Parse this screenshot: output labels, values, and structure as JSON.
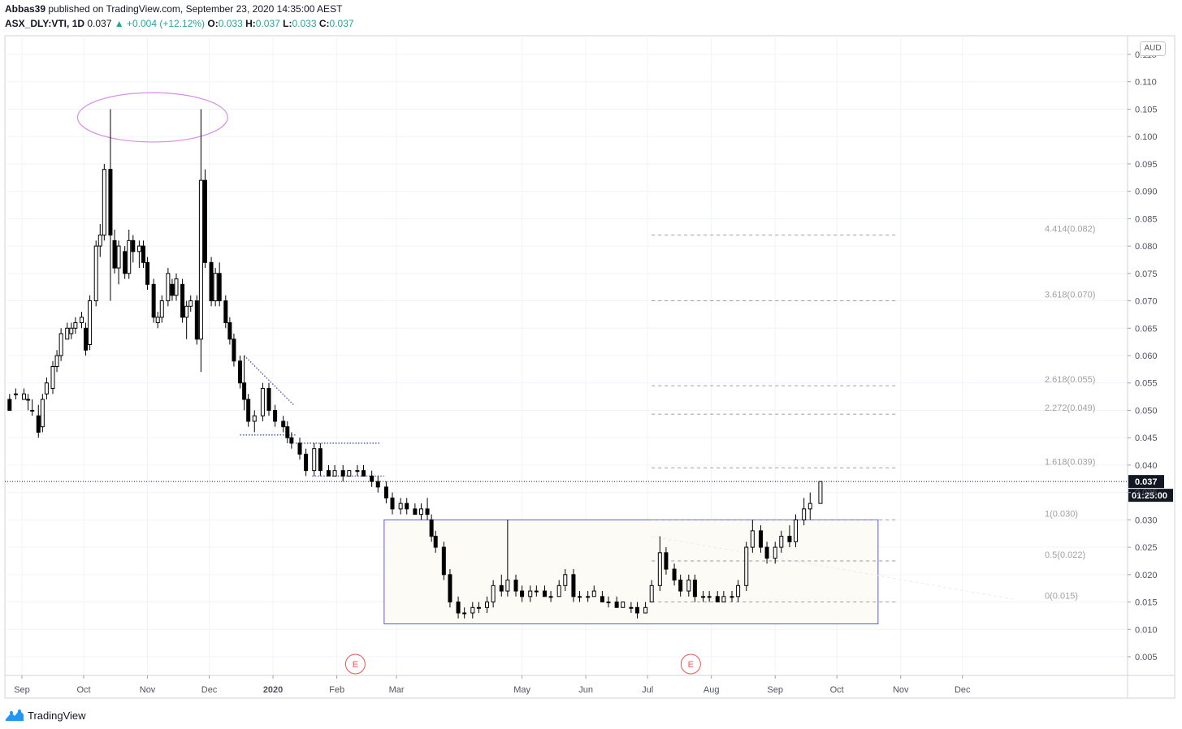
{
  "header": {
    "author": "Abbas39",
    "published_text": "published on TradingView.com, September 23, 2020 14:35:00 AEST",
    "symbol": "ASX_DLY:VTI, 1D",
    "last": "0.037",
    "change": "+0.004 (+12.12%)",
    "open_label": "O:",
    "open": "0.033",
    "high_label": "H:",
    "high": "0.037",
    "low_label": "L:",
    "low": "0.033",
    "close_label": "C:",
    "close": "0.037"
  },
  "currency": "AUD",
  "price_label": "0.037",
  "countdown_label": "01:25:00",
  "footer": {
    "brand": "TradingView"
  },
  "colors": {
    "accent_up": "#26a69a",
    "fib_line": "#9e9e9e",
    "box_border": "#5b5bd6",
    "ellipse": "#d68ee8"
  },
  "chart_data": {
    "type": "candlestick",
    "y_axis": {
      "min": 0.002,
      "max": 0.118,
      "ticks": [
        "0.115",
        "0.110",
        "0.105",
        "0.100",
        "0.095",
        "0.090",
        "0.085",
        "0.080",
        "0.075",
        "0.070",
        "0.065",
        "0.060",
        "0.055",
        "0.050",
        "0.045",
        "0.040",
        "0.035",
        "0.030",
        "0.025",
        "0.020",
        "0.015",
        "0.010",
        "0.005"
      ]
    },
    "x_axis": {
      "ticks": [
        {
          "label": "Sep",
          "date": "2019-09-01",
          "bold": false
        },
        {
          "label": "Oct",
          "date": "2019-10-01",
          "bold": false
        },
        {
          "label": "Nov",
          "date": "2019-11-01",
          "bold": false
        },
        {
          "label": "Dec",
          "date": "2019-12-01",
          "bold": false
        },
        {
          "label": "2020",
          "date": "2020-01-01",
          "bold": true
        },
        {
          "label": "Feb",
          "date": "2020-02-01",
          "bold": false
        },
        {
          "label": "Mar",
          "date": "2020-03-01",
          "bold": false
        },
        {
          "label": "May",
          "date": "2020-05-01",
          "bold": false
        },
        {
          "label": "Jun",
          "date": "2020-06-01",
          "bold": false
        },
        {
          "label": "Jul",
          "date": "2020-07-01",
          "bold": false
        },
        {
          "label": "Aug",
          "date": "2020-08-01",
          "bold": false
        },
        {
          "label": "Sep",
          "date": "2020-09-01",
          "bold": false
        },
        {
          "label": "Oct",
          "date": "2020-10-01",
          "bold": false
        },
        {
          "label": "Nov",
          "date": "2020-11-01",
          "bold": false
        },
        {
          "label": "Dec",
          "date": "2020-12-01",
          "bold": false
        }
      ]
    },
    "grid": true,
    "fib_levels": [
      {
        "label": "4.414(0.082)",
        "value": 0.082
      },
      {
        "label": "3.618(0.070)",
        "value": 0.07
      },
      {
        "label": "2.618(0.055)",
        "value": 0.0545
      },
      {
        "label": "2.272(0.049)",
        "value": 0.0493
      },
      {
        "label": "1.618(0.039)",
        "value": 0.0395
      },
      {
        "label": "1(0.030)",
        "value": 0.03
      },
      {
        "label": "0.5(0.022)",
        "value": 0.0225
      },
      {
        "label": "0(0.015)",
        "value": 0.015
      }
    ],
    "fib_start_date": "2020-07-03",
    "fib_end_date": "2020-10-31",
    "box": {
      "start_date": "2020-02-24",
      "end_date": "2020-10-21",
      "low": 0.011,
      "high": 0.03
    },
    "ellipse": {
      "start_date": "2019-09-28",
      "end_date": "2019-12-10",
      "center": 0.1035,
      "low": 0.1005,
      "high": 0.1095
    },
    "trend_lines": [
      {
        "style": "dotted",
        "d1": "2019-12-18",
        "v1": 0.06,
        "d2": "2020-01-11",
        "v2": 0.051
      },
      {
        "style": "dotted",
        "d1": "2019-12-16",
        "v1": 0.0455,
        "d2": "2020-01-12",
        "v2": 0.0455
      },
      {
        "style": "dotted",
        "d1": "2020-01-12",
        "v1": 0.044,
        "d2": "2020-02-22",
        "v2": 0.044
      },
      {
        "style": "dotted",
        "d1": "2020-01-20",
        "v1": 0.038,
        "d2": "2020-02-24",
        "v2": 0.038
      }
    ],
    "current_price": 0.037,
    "earnings_markers": [
      {
        "label": "E",
        "date": "2020-02-10"
      },
      {
        "label": "E",
        "date": "2020-07-22"
      }
    ],
    "candles": [
      [
        "2019-08-26",
        0.052,
        0.053,
        0.05,
        0.05
      ],
      [
        "2019-08-29",
        0.053,
        0.054,
        0.052,
        0.053
      ],
      [
        "2019-09-02",
        0.052,
        0.054,
        0.052,
        0.053
      ],
      [
        "2019-09-04",
        0.052,
        0.053,
        0.05,
        0.052
      ],
      [
        "2019-09-06",
        0.05,
        0.052,
        0.049,
        0.05
      ],
      [
        "2019-09-09",
        0.049,
        0.051,
        0.045,
        0.046
      ],
      [
        "2019-09-11",
        0.047,
        0.053,
        0.046,
        0.052
      ],
      [
        "2019-09-13",
        0.053,
        0.056,
        0.052,
        0.055
      ],
      [
        "2019-09-16",
        0.054,
        0.059,
        0.053,
        0.058
      ],
      [
        "2019-09-18",
        0.058,
        0.061,
        0.057,
        0.06
      ],
      [
        "2019-09-20",
        0.06,
        0.065,
        0.059,
        0.064
      ],
      [
        "2019-09-23",
        0.063,
        0.066,
        0.063,
        0.065
      ],
      [
        "2019-09-25",
        0.064,
        0.066,
        0.063,
        0.065
      ],
      [
        "2019-09-27",
        0.065,
        0.067,
        0.064,
        0.066
      ],
      [
        "2019-09-30",
        0.066,
        0.068,
        0.065,
        0.067
      ],
      [
        "2019-10-02",
        0.065,
        0.066,
        0.06,
        0.061
      ],
      [
        "2019-10-04",
        0.062,
        0.071,
        0.061,
        0.07
      ],
      [
        "2019-10-07",
        0.07,
        0.081,
        0.069,
        0.08
      ],
      [
        "2019-10-09",
        0.08,
        0.084,
        0.078,
        0.082
      ],
      [
        "2019-10-11",
        0.082,
        0.095,
        0.081,
        0.094
      ],
      [
        "2019-10-14",
        0.094,
        0.105,
        0.07,
        0.082
      ],
      [
        "2019-10-16",
        0.081,
        0.083,
        0.075,
        0.076
      ],
      [
        "2019-10-18",
        0.076,
        0.081,
        0.073,
        0.08
      ],
      [
        "2019-10-21",
        0.079,
        0.08,
        0.074,
        0.075
      ],
      [
        "2019-10-23",
        0.075,
        0.083,
        0.074,
        0.081
      ],
      [
        "2019-10-25",
        0.081,
        0.082,
        0.077,
        0.079
      ],
      [
        "2019-10-28",
        0.079,
        0.081,
        0.076,
        0.08
      ],
      [
        "2019-10-30",
        0.08,
        0.081,
        0.076,
        0.077
      ],
      [
        "2019-11-01",
        0.077,
        0.078,
        0.072,
        0.073
      ],
      [
        "2019-11-04",
        0.073,
        0.074,
        0.066,
        0.067
      ],
      [
        "2019-11-06",
        0.066,
        0.068,
        0.065,
        0.067
      ],
      [
        "2019-11-08",
        0.067,
        0.071,
        0.066,
        0.07
      ],
      [
        "2019-11-11",
        0.07,
        0.076,
        0.069,
        0.075
      ],
      [
        "2019-11-13",
        0.073,
        0.074,
        0.07,
        0.071
      ],
      [
        "2019-11-15",
        0.071,
        0.075,
        0.07,
        0.074
      ],
      [
        "2019-11-18",
        0.073,
        0.074,
        0.066,
        0.067
      ],
      [
        "2019-11-20",
        0.067,
        0.07,
        0.063,
        0.069
      ],
      [
        "2019-11-22",
        0.069,
        0.071,
        0.068,
        0.07
      ],
      [
        "2019-11-25",
        0.07,
        0.071,
        0.062,
        0.063
      ],
      [
        "2019-11-27",
        0.063,
        0.105,
        0.057,
        0.092
      ],
      [
        "2019-11-29",
        0.092,
        0.094,
        0.076,
        0.077
      ],
      [
        "2019-12-02",
        0.077,
        0.078,
        0.069,
        0.07
      ],
      [
        "2019-12-04",
        0.07,
        0.076,
        0.069,
        0.075
      ],
      [
        "2019-12-06",
        0.075,
        0.077,
        0.069,
        0.07
      ],
      [
        "2019-12-09",
        0.07,
        0.071,
        0.065,
        0.066
      ],
      [
        "2019-12-11",
        0.066,
        0.067,
        0.062,
        0.063
      ],
      [
        "2019-12-13",
        0.063,
        0.064,
        0.058,
        0.059
      ],
      [
        "2019-12-16",
        0.059,
        0.06,
        0.054,
        0.055
      ],
      [
        "2019-12-18",
        0.055,
        0.06,
        0.05,
        0.052
      ],
      [
        "2019-12-20",
        0.052,
        0.053,
        0.047,
        0.048
      ],
      [
        "2019-12-23",
        0.048,
        0.05,
        0.046,
        0.049
      ],
      [
        "2019-12-27",
        0.049,
        0.055,
        0.048,
        0.054
      ],
      [
        "2019-12-30",
        0.054,
        0.055,
        0.049,
        0.05
      ],
      [
        "2020-01-02",
        0.05,
        0.051,
        0.047,
        0.048
      ],
      [
        "2020-01-06",
        0.048,
        0.049,
        0.046,
        0.047
      ],
      [
        "2020-01-08",
        0.047,
        0.048,
        0.044,
        0.045
      ],
      [
        "2020-01-10",
        0.045,
        0.046,
        0.043,
        0.044
      ],
      [
        "2020-01-14",
        0.044,
        0.045,
        0.041,
        0.042
      ],
      [
        "2020-01-17",
        0.042,
        0.043,
        0.038,
        0.039
      ],
      [
        "2020-01-21",
        0.039,
        0.044,
        0.038,
        0.043
      ],
      [
        "2020-01-24",
        0.043,
        0.044,
        0.038,
        0.039
      ],
      [
        "2020-01-28",
        0.039,
        0.04,
        0.038,
        0.038
      ],
      [
        "2020-01-31",
        0.038,
        0.04,
        0.038,
        0.039
      ],
      [
        "2020-02-04",
        0.039,
        0.04,
        0.037,
        0.038
      ],
      [
        "2020-02-07",
        0.038,
        0.039,
        0.038,
        0.039
      ],
      [
        "2020-02-11",
        0.039,
        0.04,
        0.038,
        0.039
      ],
      [
        "2020-02-14",
        0.039,
        0.04,
        0.038,
        0.038
      ],
      [
        "2020-02-18",
        0.038,
        0.039,
        0.036,
        0.037
      ],
      [
        "2020-02-21",
        0.037,
        0.038,
        0.035,
        0.036
      ],
      [
        "2020-02-25",
        0.036,
        0.037,
        0.033,
        0.034
      ],
      [
        "2020-02-28",
        0.034,
        0.035,
        0.031,
        0.032
      ],
      [
        "2020-03-03",
        0.032,
        0.034,
        0.031,
        0.033
      ],
      [
        "2020-03-06",
        0.033,
        0.034,
        0.031,
        0.032
      ],
      [
        "2020-03-10",
        0.032,
        0.033,
        0.031,
        0.031
      ],
      [
        "2020-03-13",
        0.031,
        0.033,
        0.03,
        0.032
      ],
      [
        "2020-03-16",
        0.032,
        0.034,
        0.03,
        0.031
      ],
      [
        "2020-03-18",
        0.03,
        0.031,
        0.026,
        0.027
      ],
      [
        "2020-03-20",
        0.027,
        0.028,
        0.024,
        0.025
      ],
      [
        "2020-03-24",
        0.025,
        0.026,
        0.019,
        0.02
      ],
      [
        "2020-03-27",
        0.02,
        0.021,
        0.014,
        0.015
      ],
      [
        "2020-03-31",
        0.015,
        0.016,
        0.012,
        0.013
      ],
      [
        "2020-04-03",
        0.013,
        0.014,
        0.012,
        0.013
      ],
      [
        "2020-04-07",
        0.013,
        0.015,
        0.012,
        0.014
      ],
      [
        "2020-04-10",
        0.014,
        0.015,
        0.013,
        0.014
      ],
      [
        "2020-04-14",
        0.014,
        0.016,
        0.013,
        0.015
      ],
      [
        "2020-04-17",
        0.015,
        0.019,
        0.014,
        0.018
      ],
      [
        "2020-04-21",
        0.018,
        0.02,
        0.016,
        0.017
      ],
      [
        "2020-04-24",
        0.017,
        0.03,
        0.016,
        0.019
      ],
      [
        "2020-04-28",
        0.019,
        0.02,
        0.016,
        0.017
      ],
      [
        "2020-05-01",
        0.017,
        0.018,
        0.015,
        0.016
      ],
      [
        "2020-05-05",
        0.016,
        0.018,
        0.015,
        0.017
      ],
      [
        "2020-05-08",
        0.017,
        0.018,
        0.016,
        0.017
      ],
      [
        "2020-05-12",
        0.017,
        0.018,
        0.016,
        0.016
      ],
      [
        "2020-05-15",
        0.016,
        0.017,
        0.015,
        0.016
      ],
      [
        "2020-05-19",
        0.016,
        0.019,
        0.016,
        0.018
      ],
      [
        "2020-05-22",
        0.018,
        0.021,
        0.017,
        0.02
      ],
      [
        "2020-05-26",
        0.02,
        0.021,
        0.015,
        0.016
      ],
      [
        "2020-05-29",
        0.016,
        0.017,
        0.015,
        0.016
      ],
      [
        "2020-06-02",
        0.016,
        0.017,
        0.015,
        0.016
      ],
      [
        "2020-06-05",
        0.016,
        0.018,
        0.016,
        0.017
      ],
      [
        "2020-06-09",
        0.016,
        0.017,
        0.015,
        0.015
      ],
      [
        "2020-06-12",
        0.015,
        0.016,
        0.014,
        0.015
      ],
      [
        "2020-06-16",
        0.015,
        0.016,
        0.014,
        0.014
      ],
      [
        "2020-06-19",
        0.014,
        0.015,
        0.014,
        0.015
      ],
      [
        "2020-06-23",
        0.014,
        0.015,
        0.013,
        0.014
      ],
      [
        "2020-06-26",
        0.014,
        0.015,
        0.012,
        0.013
      ],
      [
        "2020-06-30",
        0.013,
        0.015,
        0.013,
        0.014
      ],
      [
        "2020-07-03",
        0.015,
        0.019,
        0.015,
        0.018
      ],
      [
        "2020-07-07",
        0.018,
        0.027,
        0.017,
        0.024
      ],
      [
        "2020-07-10",
        0.024,
        0.025,
        0.02,
        0.021
      ],
      [
        "2020-07-14",
        0.021,
        0.022,
        0.018,
        0.019
      ],
      [
        "2020-07-17",
        0.019,
        0.02,
        0.016,
        0.017
      ],
      [
        "2020-07-21",
        0.017,
        0.02,
        0.016,
        0.019
      ],
      [
        "2020-07-24",
        0.019,
        0.02,
        0.015,
        0.016
      ],
      [
        "2020-07-28",
        0.016,
        0.017,
        0.015,
        0.016
      ],
      [
        "2020-07-31",
        0.016,
        0.017,
        0.015,
        0.016
      ],
      [
        "2020-08-04",
        0.016,
        0.017,
        0.015,
        0.015
      ],
      [
        "2020-08-07",
        0.015,
        0.017,
        0.015,
        0.016
      ],
      [
        "2020-08-11",
        0.016,
        0.017,
        0.015,
        0.016
      ],
      [
        "2020-08-14",
        0.016,
        0.019,
        0.015,
        0.018
      ],
      [
        "2020-08-18",
        0.018,
        0.026,
        0.017,
        0.025
      ],
      [
        "2020-08-21",
        0.025,
        0.03,
        0.024,
        0.028
      ],
      [
        "2020-08-25",
        0.028,
        0.029,
        0.024,
        0.025
      ],
      [
        "2020-08-28",
        0.025,
        0.026,
        0.022,
        0.023
      ],
      [
        "2020-09-01",
        0.023,
        0.026,
        0.022,
        0.025
      ],
      [
        "2020-09-04",
        0.025,
        0.028,
        0.024,
        0.027
      ],
      [
        "2020-09-08",
        0.027,
        0.029,
        0.025,
        0.026
      ],
      [
        "2020-09-11",
        0.026,
        0.031,
        0.025,
        0.03
      ],
      [
        "2020-09-15",
        0.03,
        0.034,
        0.029,
        0.032
      ],
      [
        "2020-09-18",
        0.032,
        0.035,
        0.03,
        0.033
      ],
      [
        "2020-09-23",
        0.033,
        0.037,
        0.033,
        0.037
      ]
    ]
  }
}
